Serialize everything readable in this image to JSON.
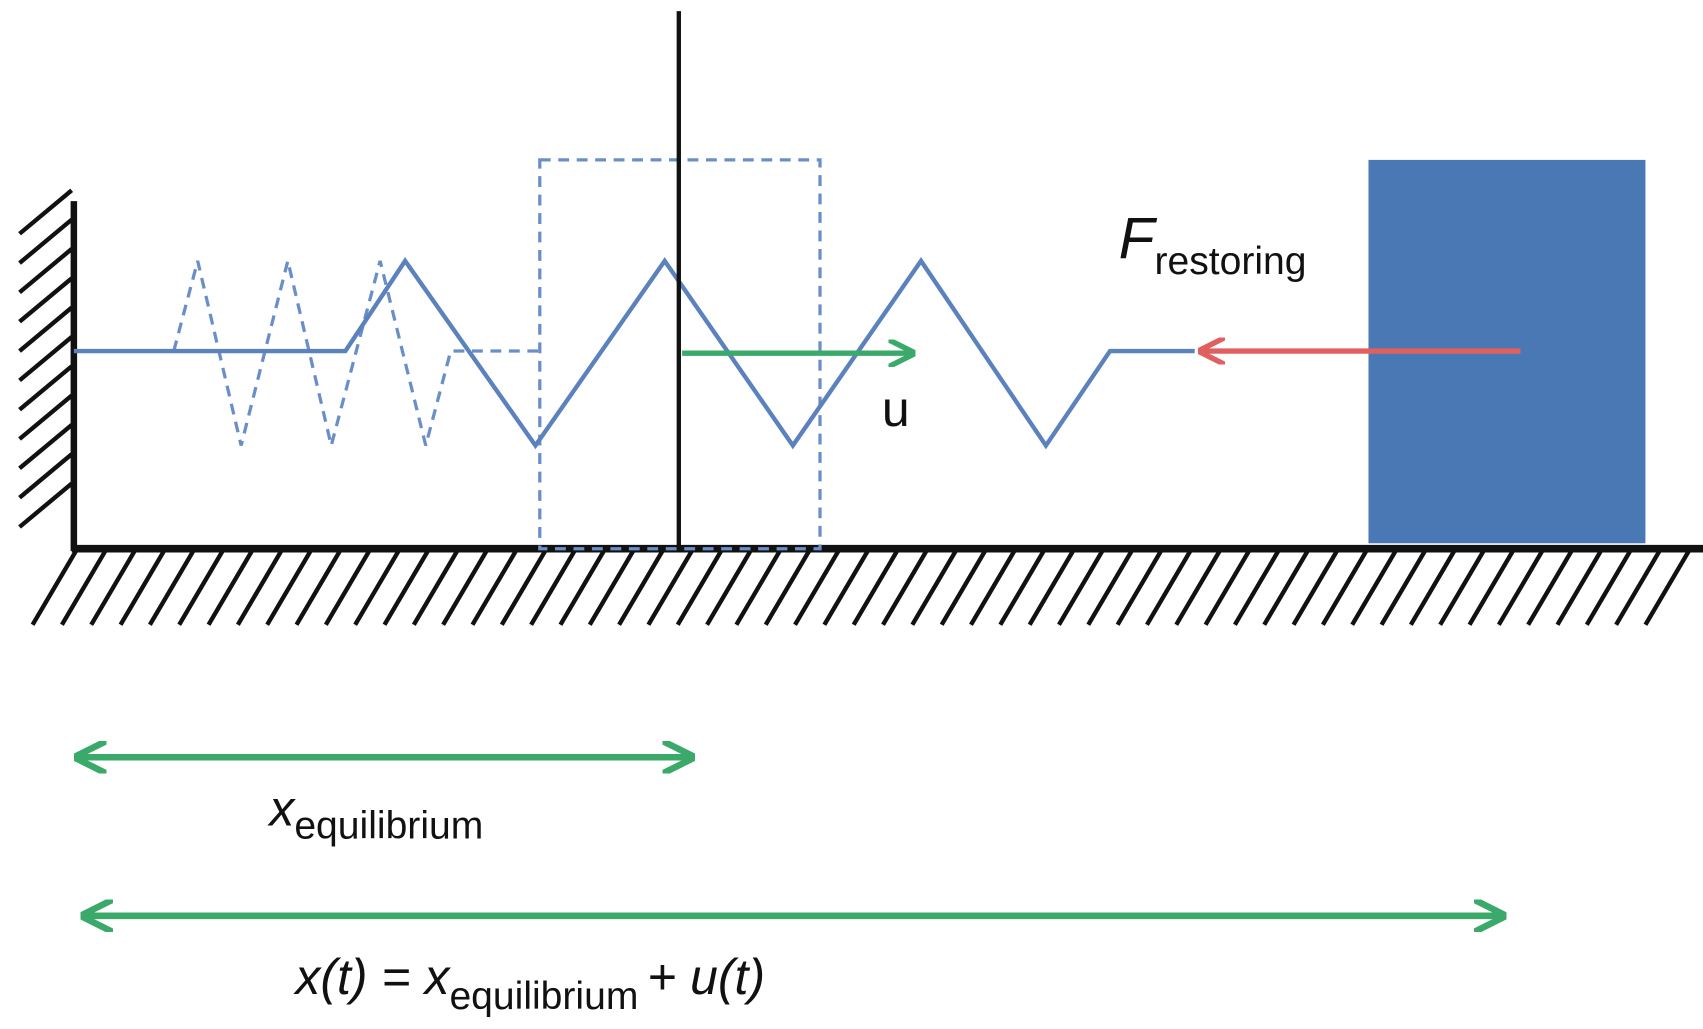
{
  "labels": {
    "force": {
      "symbol": "F",
      "subscript": "restoring"
    },
    "displacement": "u",
    "equilibrium": {
      "symbol": "x",
      "subscript": "equilibrium"
    },
    "position": {
      "lhs": "x(t) = x",
      "subscript": "equilibrium",
      "rhs": "+ u(t)"
    }
  }
}
